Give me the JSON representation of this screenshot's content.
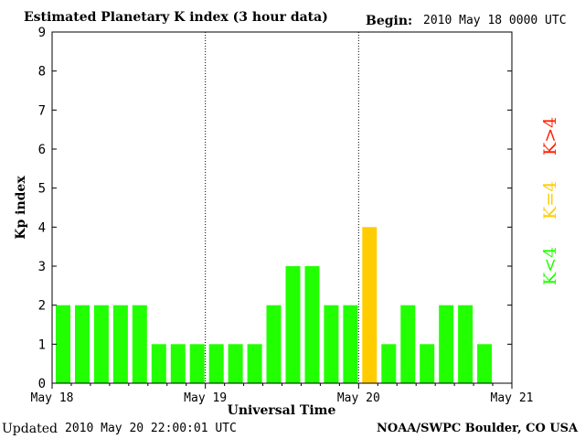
{
  "header": {
    "title": "Estimated Planetary K index (3 hour data)",
    "begin_label": "Begin:",
    "begin_value": "2010 May 18 0000 UTC"
  },
  "footer": {
    "updated_label": "Updated",
    "updated_value": "2010 May 20 22:00:01 UTC",
    "source": "NOAA/SWPC Boulder, CO USA"
  },
  "legend": {
    "low": "K<4",
    "equal": "K=4",
    "high": "K>4"
  },
  "colors": {
    "low": "#22ff00",
    "equal": "#ffcc00",
    "high": "#ff2200",
    "axis": "#000000"
  },
  "chart_data": {
    "type": "bar",
    "title": "Estimated Planetary K index (3 hour data)",
    "xlabel": "Universal Time",
    "ylabel": "Kp index",
    "ylim": [
      0,
      9
    ],
    "yticks": [
      0,
      1,
      2,
      3,
      4,
      5,
      6,
      7,
      8,
      9
    ],
    "x_day_labels": [
      "May 18",
      "May 19",
      "May 20",
      "May 21"
    ],
    "intervals_per_day": 8,
    "values": [
      2,
      2,
      2,
      2,
      2,
      1,
      1,
      1,
      1,
      1,
      1,
      2,
      3,
      3,
      2,
      2,
      4,
      1,
      2,
      1,
      2,
      2,
      1
    ],
    "grid": "dotted day separators"
  }
}
